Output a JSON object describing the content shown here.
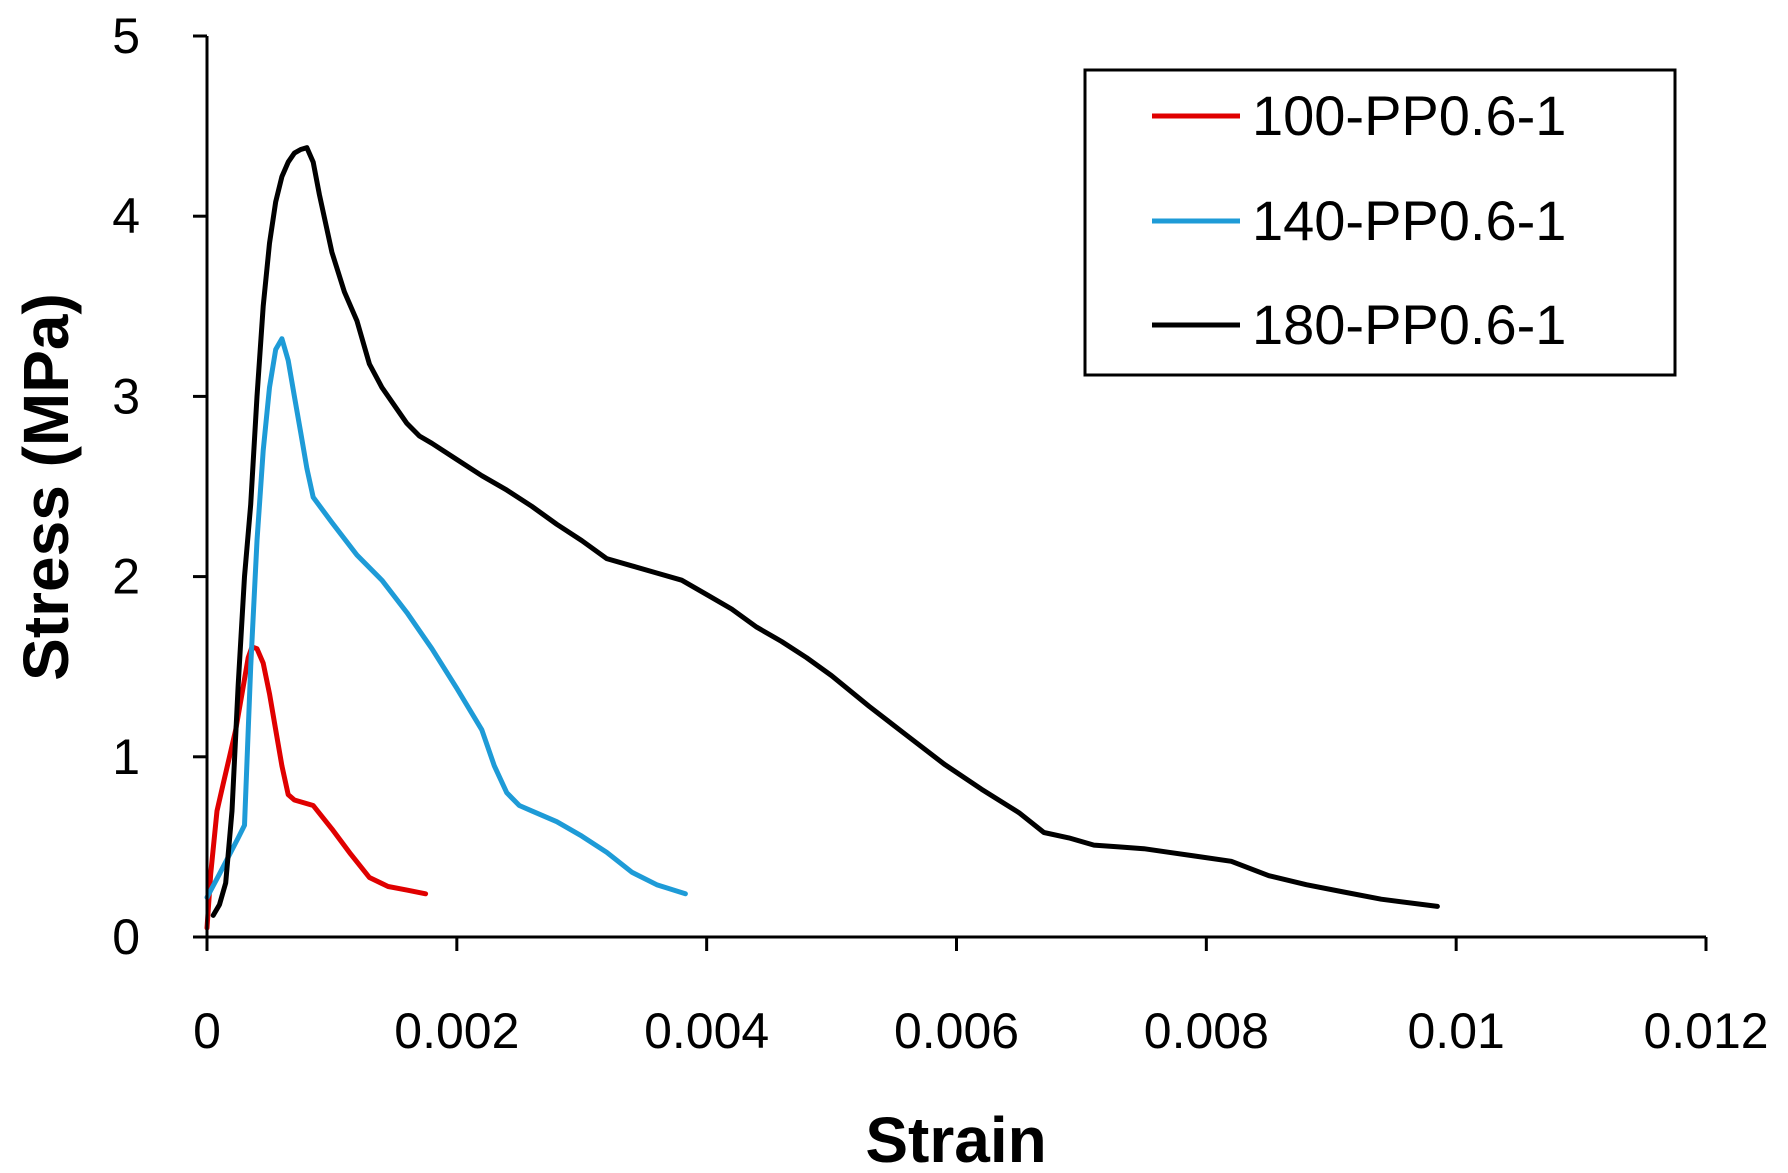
{
  "chart_data": {
    "type": "line",
    "title": "",
    "xlabel": "Strain",
    "ylabel": "Stress (MPa)",
    "xlim": [
      0,
      0.012
    ],
    "ylim": [
      0,
      5
    ],
    "xticks": [
      0,
      0.002,
      0.004,
      0.006,
      0.008,
      0.01,
      0.012
    ],
    "xtick_labels": [
      "0",
      "0.002",
      "0.004",
      "0.006",
      "0.008",
      "0.01",
      "0.012"
    ],
    "yticks": [
      0,
      1,
      2,
      3,
      4,
      5
    ],
    "ytick_labels": [
      "0",
      "1",
      "2",
      "3",
      "4",
      "5"
    ],
    "grid": false,
    "legend_position": "top-right",
    "series": [
      {
        "name": "100-PP0.6-1",
        "color": "#e00000",
        "points": [
          [
            0.0,
            0.05
          ],
          [
            3e-05,
            0.35
          ],
          [
            8e-05,
            0.7
          ],
          [
            0.00013,
            0.85
          ],
          [
            0.00018,
            1.0
          ],
          [
            0.00023,
            1.15
          ],
          [
            0.00028,
            1.35
          ],
          [
            0.00033,
            1.55
          ],
          [
            0.00036,
            1.61
          ],
          [
            0.0004,
            1.6
          ],
          [
            0.00045,
            1.52
          ],
          [
            0.0005,
            1.35
          ],
          [
            0.00055,
            1.15
          ],
          [
            0.0006,
            0.95
          ],
          [
            0.00065,
            0.79
          ],
          [
            0.0007,
            0.76
          ],
          [
            0.00085,
            0.73
          ],
          [
            0.001,
            0.6
          ],
          [
            0.00115,
            0.46
          ],
          [
            0.0013,
            0.33
          ],
          [
            0.00145,
            0.28
          ],
          [
            0.0016,
            0.26
          ],
          [
            0.00175,
            0.24
          ]
        ]
      },
      {
        "name": "140-PP0.6-1",
        "color": "#1e9bd7",
        "points": [
          [
            0.0,
            0.22
          ],
          [
            0.0001,
            0.35
          ],
          [
            0.00025,
            0.55
          ],
          [
            0.0003,
            0.62
          ],
          [
            0.00035,
            1.5
          ],
          [
            0.0004,
            2.2
          ],
          [
            0.00045,
            2.7
          ],
          [
            0.0005,
            3.05
          ],
          [
            0.00055,
            3.26
          ],
          [
            0.0006,
            3.32
          ],
          [
            0.00065,
            3.2
          ],
          [
            0.0007,
            3.0
          ],
          [
            0.00075,
            2.8
          ],
          [
            0.0008,
            2.6
          ],
          [
            0.00085,
            2.44
          ],
          [
            0.001,
            2.3
          ],
          [
            0.0012,
            2.12
          ],
          [
            0.0014,
            1.98
          ],
          [
            0.0016,
            1.8
          ],
          [
            0.0018,
            1.6
          ],
          [
            0.002,
            1.38
          ],
          [
            0.0022,
            1.15
          ],
          [
            0.0023,
            0.95
          ],
          [
            0.0024,
            0.8
          ],
          [
            0.0025,
            0.73
          ],
          [
            0.0026,
            0.7
          ],
          [
            0.0028,
            0.64
          ],
          [
            0.003,
            0.56
          ],
          [
            0.0032,
            0.47
          ],
          [
            0.0034,
            0.36
          ],
          [
            0.0036,
            0.29
          ],
          [
            0.00383,
            0.24
          ]
        ]
      },
      {
        "name": "180-PP0.6-1",
        "color": "#000000",
        "points": [
          [
            5e-05,
            0.12
          ],
          [
            0.0001,
            0.18
          ],
          [
            0.00015,
            0.3
          ],
          [
            0.0002,
            0.7
          ],
          [
            0.00025,
            1.4
          ],
          [
            0.0003,
            2.0
          ],
          [
            0.00035,
            2.4
          ],
          [
            0.0004,
            3.0
          ],
          [
            0.00045,
            3.5
          ],
          [
            0.0005,
            3.85
          ],
          [
            0.00055,
            4.08
          ],
          [
            0.0006,
            4.22
          ],
          [
            0.00065,
            4.3
          ],
          [
            0.0007,
            4.35
          ],
          [
            0.00075,
            4.37
          ],
          [
            0.0008,
            4.38
          ],
          [
            0.00085,
            4.3
          ],
          [
            0.0009,
            4.12
          ],
          [
            0.001,
            3.8
          ],
          [
            0.0011,
            3.58
          ],
          [
            0.0012,
            3.42
          ],
          [
            0.0013,
            3.18
          ],
          [
            0.0014,
            3.05
          ],
          [
            0.0015,
            2.95
          ],
          [
            0.0016,
            2.85
          ],
          [
            0.0017,
            2.78
          ],
          [
            0.0018,
            2.74
          ],
          [
            0.002,
            2.65
          ],
          [
            0.0022,
            2.56
          ],
          [
            0.0024,
            2.48
          ],
          [
            0.0026,
            2.39
          ],
          [
            0.0028,
            2.29
          ],
          [
            0.003,
            2.2
          ],
          [
            0.0032,
            2.1
          ],
          [
            0.0034,
            2.06
          ],
          [
            0.0036,
            2.02
          ],
          [
            0.0038,
            1.98
          ],
          [
            0.004,
            1.9
          ],
          [
            0.0042,
            1.82
          ],
          [
            0.0044,
            1.72
          ],
          [
            0.0046,
            1.64
          ],
          [
            0.0048,
            1.55
          ],
          [
            0.005,
            1.45
          ],
          [
            0.0053,
            1.28
          ],
          [
            0.0056,
            1.12
          ],
          [
            0.0059,
            0.96
          ],
          [
            0.0062,
            0.82
          ],
          [
            0.0065,
            0.69
          ],
          [
            0.0067,
            0.58
          ],
          [
            0.0069,
            0.55
          ],
          [
            0.0071,
            0.51
          ],
          [
            0.0073,
            0.5
          ],
          [
            0.0075,
            0.49
          ],
          [
            0.0077,
            0.47
          ],
          [
            0.0079,
            0.45
          ],
          [
            0.0082,
            0.42
          ],
          [
            0.0085,
            0.34
          ],
          [
            0.0088,
            0.29
          ],
          [
            0.0091,
            0.25
          ],
          [
            0.0094,
            0.21
          ],
          [
            0.00985,
            0.17
          ]
        ]
      }
    ]
  }
}
